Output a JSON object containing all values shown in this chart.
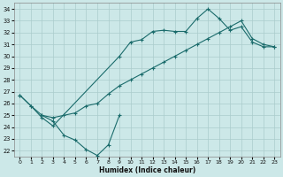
{
  "xlabel": "Humidex (Indice chaleur)",
  "bg_color": "#cce8e8",
  "grid_color": "#aacccc",
  "line_color": "#1a6b6b",
  "ylim": [
    21.5,
    34.5
  ],
  "xlim": [
    -0.5,
    23.5
  ],
  "yticks": [
    22,
    23,
    24,
    25,
    26,
    27,
    28,
    29,
    30,
    31,
    32,
    33,
    34
  ],
  "xticks": [
    0,
    1,
    2,
    3,
    4,
    5,
    6,
    7,
    8,
    9,
    10,
    11,
    12,
    13,
    14,
    15,
    16,
    17,
    18,
    19,
    20,
    21,
    22,
    23
  ],
  "line_top_x": [
    0,
    1,
    2,
    3,
    9,
    10,
    11,
    12,
    13,
    14,
    15,
    16,
    17,
    18,
    19,
    20,
    21,
    22,
    23
  ],
  "line_top_y": [
    26.7,
    25.8,
    24.8,
    24.1,
    30.0,
    31.2,
    31.4,
    32.1,
    32.2,
    32.1,
    32.1,
    33.2,
    34.0,
    33.2,
    32.2,
    32.5,
    31.2,
    30.8,
    30.8
  ],
  "line_diag_x": [
    2,
    3,
    4,
    5,
    6,
    7,
    8,
    9,
    10,
    11,
    12,
    13,
    14,
    15,
    16,
    17,
    18,
    19,
    20,
    21,
    22,
    23
  ],
  "line_diag_y": [
    25.0,
    24.8,
    25.0,
    25.2,
    25.8,
    26.0,
    26.8,
    27.5,
    28.0,
    28.5,
    29.0,
    29.5,
    30.0,
    30.5,
    31.0,
    31.5,
    32.0,
    32.5,
    33.0,
    31.5,
    31.0,
    30.8
  ],
  "line_bot_x": [
    0,
    1,
    2,
    3,
    4,
    5,
    6,
    7,
    8,
    9
  ],
  "line_bot_y": [
    26.7,
    25.8,
    25.0,
    24.5,
    23.3,
    22.9,
    22.1,
    21.6,
    22.5,
    25.0
  ]
}
